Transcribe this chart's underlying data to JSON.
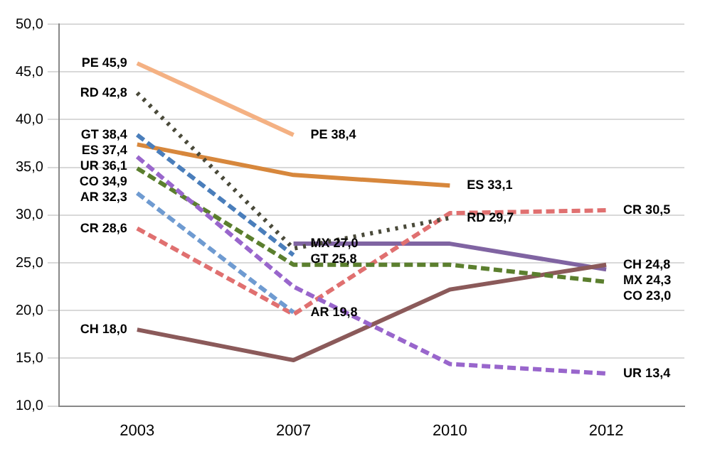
{
  "chart_data": {
    "type": "line",
    "categories": [
      "2003",
      "2007",
      "2010",
      "2012"
    ],
    "series": [
      {
        "color": "#f4b183",
        "line_style": "solid",
        "values": [
          45.9,
          38.4,
          null,
          null
        ]
      },
      {
        "color": "#4a4a3a",
        "line_style": "dotted",
        "values": [
          42.8,
          26.5,
          29.7,
          null
        ]
      },
      {
        "color": "#4a7ebb",
        "line_style": "dashed",
        "values": [
          38.4,
          25.8,
          null,
          null
        ]
      },
      {
        "color": "#d7873c",
        "line_style": "solid",
        "values": [
          37.4,
          34.2,
          33.1,
          null
        ]
      },
      {
        "color": "#9966cc",
        "line_style": "dashed",
        "values": [
          36.1,
          22.5,
          14.4,
          13.4
        ]
      },
      {
        "color": "#5b7f2e",
        "line_style": "dashed",
        "values": [
          34.9,
          24.8,
          24.8,
          23.0
        ]
      },
      {
        "color": "#6f9bd1",
        "line_style": "dashed",
        "values": [
          32.3,
          19.8,
          null,
          null
        ]
      },
      {
        "color": "#e07070",
        "line_style": "dashed",
        "values": [
          28.6,
          19.6,
          30.2,
          30.5
        ]
      },
      {
        "color": "#8b5a5a",
        "line_style": "solid",
        "values": [
          18.0,
          14.8,
          22.2,
          24.8
        ]
      },
      {
        "color": "#8064a2",
        "line_style": "solid",
        "values": [
          null,
          27.0,
          27.0,
          24.3
        ]
      }
    ],
    "ylim": [
      10,
      50
    ],
    "yticks": [
      {
        "value": 10,
        "label": "10,0"
      },
      {
        "value": 15,
        "label": "15,0"
      },
      {
        "value": 20,
        "label": "20,0"
      },
      {
        "value": 25,
        "label": "25,0"
      },
      {
        "value": 30,
        "label": "30,0"
      },
      {
        "value": 35,
        "label": "35,0"
      },
      {
        "value": 40,
        "label": "40,0"
      },
      {
        "value": 45,
        "label": "45,0"
      },
      {
        "value": 50,
        "label": "50,0"
      }
    ],
    "grid": "y",
    "legend": false,
    "marker": "none",
    "annotations": [
      {
        "text": "PE 45,9",
        "x": "2003",
        "y": 45.9
      },
      {
        "text": "PE 38,4",
        "x": "2007",
        "y": 38.4
      },
      {
        "text": "RD 42,8",
        "x": "2003",
        "y": 42.8
      },
      {
        "text": "RD 29,7",
        "x": "2010",
        "y": 29.7
      },
      {
        "text": "GT 38,4",
        "x": "2003",
        "y": 38.4
      },
      {
        "text": "GT 25,8",
        "x": "2007",
        "y": 25.8
      },
      {
        "text": "ES 37,4",
        "x": "2003",
        "y": 37.4
      },
      {
        "text": "ES 33,1",
        "x": "2010",
        "y": 33.1
      },
      {
        "text": "UR 36,1",
        "x": "2003",
        "y": 36.1
      },
      {
        "text": "UR 13,4",
        "x": "2012",
        "y": 13.4
      },
      {
        "text": "CO 34,9",
        "x": "2003",
        "y": 34.9
      },
      {
        "text": "CO 23,0",
        "x": "2012",
        "y": 23.0
      },
      {
        "text": "AR 32,3",
        "x": "2003",
        "y": 32.3
      },
      {
        "text": "AR 19,8",
        "x": "2007",
        "y": 19.8
      },
      {
        "text": "CR 28,6",
        "x": "2003",
        "y": 28.6
      },
      {
        "text": "CR 30,5",
        "x": "2012",
        "y": 30.5
      },
      {
        "text": "CH 18,0",
        "x": "2003",
        "y": 18.0
      },
      {
        "text": "CH 24,8",
        "x": "2012",
        "y": 24.8
      },
      {
        "text": "MX 27,0",
        "x": "2007",
        "y": 27.0
      },
      {
        "text": "MX 24,3",
        "x": "2012",
        "y": 24.3
      }
    ]
  }
}
